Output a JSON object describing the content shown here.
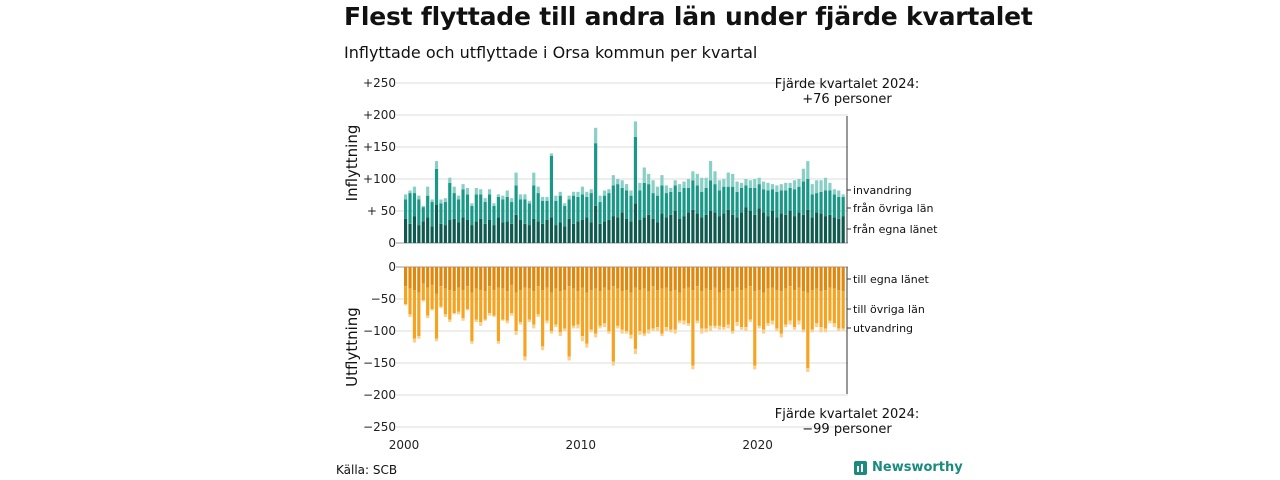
{
  "title": "Flest flyttade till andra län under fjärde kvartalet",
  "subtitle": "Inflyttade och utflyttade i Orsa kommun per kvartal",
  "source": "Källa: SCB",
  "brand": "Newsworthy",
  "colors": {
    "invandring": "#88cfc5",
    "fran_ovriga_lan": "#199888",
    "fran_egna_lanet": "#0e5a4e",
    "till_egna_lanet": "#e0880e",
    "till_ovriga_lan": "#f6a321",
    "utvandring": "#fbd08a"
  },
  "chart_data": [
    {
      "type": "bar",
      "stacked": true,
      "ylabel": "Inflyttning",
      "ylim": [
        0,
        250
      ],
      "y_ticks": [
        "0",
        "+ 50",
        "+100",
        "+150",
        "+200",
        "+250"
      ],
      "x_ticks": [
        "2000",
        "2010",
        "2020"
      ],
      "annotation": [
        "Fjärde kvartalet 2024:",
        "+76 personer"
      ],
      "series_labels": [
        "invandring",
        "från övriga län",
        "från egna länet"
      ],
      "x": [
        "2000Q1",
        "2000Q2",
        "2000Q3",
        "2000Q4",
        "2001Q1",
        "2001Q2",
        "2001Q3",
        "2001Q4",
        "2002Q1",
        "2002Q2",
        "2002Q3",
        "2002Q4",
        "2003Q1",
        "2003Q2",
        "2003Q3",
        "2003Q4",
        "2004Q1",
        "2004Q2",
        "2004Q3",
        "2004Q4",
        "2005Q1",
        "2005Q2",
        "2005Q3",
        "2005Q4",
        "2006Q1",
        "2006Q2",
        "2006Q3",
        "2006Q4",
        "2007Q1",
        "2007Q2",
        "2007Q3",
        "2007Q4",
        "2008Q1",
        "2008Q2",
        "2008Q3",
        "2008Q4",
        "2009Q1",
        "2009Q2",
        "2009Q3",
        "2009Q4",
        "2010Q1",
        "2010Q2",
        "2010Q3",
        "2010Q4",
        "2011Q1",
        "2011Q2",
        "2011Q3",
        "2011Q4",
        "2012Q1",
        "2012Q2",
        "2012Q3",
        "2012Q4",
        "2013Q1",
        "2013Q2",
        "2013Q3",
        "2013Q4",
        "2014Q1",
        "2014Q2",
        "2014Q3",
        "2014Q4",
        "2015Q1",
        "2015Q2",
        "2015Q3",
        "2015Q4",
        "2016Q1",
        "2016Q2",
        "2016Q3",
        "2016Q4",
        "2017Q1",
        "2017Q2",
        "2017Q3",
        "2017Q4",
        "2018Q1",
        "2018Q2",
        "2018Q3",
        "2018Q4",
        "2019Q1",
        "2019Q2",
        "2019Q3",
        "2019Q4",
        "2020Q1",
        "2020Q2",
        "2020Q3",
        "2020Q4",
        "2021Q1",
        "2021Q2",
        "2021Q3",
        "2021Q4",
        "2022Q1",
        "2022Q2",
        "2022Q3",
        "2022Q4",
        "2023Q1",
        "2023Q2",
        "2023Q3",
        "2023Q4",
        "2024Q1",
        "2024Q2",
        "2024Q3",
        "2024Q4"
      ],
      "series": [
        {
          "name": "från egna länet",
          "values": [
            38,
            30,
            42,
            28,
            34,
            40,
            26,
            60,
            30,
            28,
            36,
            38,
            32,
            40,
            36,
            28,
            34,
            38,
            30,
            36,
            28,
            40,
            32,
            34,
            30,
            44,
            36,
            30,
            28,
            38,
            34,
            30,
            36,
            40,
            28,
            32,
            26,
            38,
            30,
            34,
            36,
            40,
            32,
            58,
            30,
            34,
            36,
            42,
            40,
            48,
            38,
            34,
            62,
            36,
            40,
            44,
            38,
            32,
            46,
            40,
            44,
            50,
            38,
            42,
            48,
            52,
            46,
            40,
            44,
            50,
            48,
            42,
            46,
            52,
            44,
            40,
            48,
            56,
            50,
            44,
            54,
            48,
            42,
            50,
            40,
            46,
            44,
            50,
            42,
            48,
            44,
            52,
            40,
            48,
            46,
            42,
            44,
            40,
            38,
            42
          ]
        },
        {
          "name": "från övriga län",
          "values": [
            30,
            48,
            36,
            40,
            22,
            34,
            38,
            56,
            32,
            36,
            58,
            40,
            36,
            44,
            40,
            30,
            42,
            38,
            34,
            40,
            30,
            32,
            36,
            38,
            34,
            46,
            32,
            38,
            34,
            52,
            44,
            36,
            30,
            96,
            38,
            42,
            32,
            30,
            44,
            38,
            40,
            32,
            46,
            98,
            34,
            40,
            42,
            48,
            52,
            38,
            44,
            40,
            104,
            46,
            54,
            48,
            40,
            42,
            44,
            38,
            36,
            40,
            42,
            44,
            38,
            46,
            44,
            40,
            42,
            48,
            44,
            40,
            42,
            36,
            44,
            40,
            38,
            34,
            36,
            42,
            38,
            36,
            40,
            34,
            40,
            36,
            38,
            36,
            42,
            40,
            52,
            48,
            36,
            30,
            34,
            40,
            38,
            36,
            34,
            30
          ]
        },
        {
          "name": "invandring",
          "values": [
            8,
            4,
            10,
            6,
            2,
            14,
            4,
            12,
            6,
            6,
            8,
            10,
            6,
            8,
            10,
            4,
            10,
            8,
            6,
            8,
            4,
            4,
            6,
            10,
            6,
            20,
            8,
            8,
            4,
            20,
            10,
            6,
            6,
            4,
            8,
            6,
            4,
            6,
            6,
            8,
            12,
            8,
            6,
            24,
            10,
            8,
            6,
            16,
            8,
            12,
            10,
            8,
            24,
            12,
            24,
            16,
            20,
            14,
            16,
            12,
            6,
            8,
            12,
            10,
            14,
            14,
            18,
            22,
            16,
            30,
            20,
            16,
            12,
            22,
            20,
            16,
            8,
            10,
            12,
            14,
            10,
            12,
            12,
            8,
            10,
            10,
            12,
            8,
            14,
            12,
            20,
            28,
            16,
            20,
            18,
            20,
            12,
            8,
            10,
            4
          ]
        }
      ]
    },
    {
      "type": "bar",
      "stacked": true,
      "ylabel": "Utflyttning",
      "ylim": [
        -250,
        0
      ],
      "y_ticks": [
        "0",
        "−50",
        "−100",
        "−150",
        "−200",
        "−250"
      ],
      "x_ticks": [
        "2000",
        "2010",
        "2020"
      ],
      "annotation": [
        "Fjärde kvartalet 2024:",
        "−99 personer"
      ],
      "series_labels": [
        "till egna länet",
        "till övriga län",
        "utvandring"
      ],
      "series": [
        {
          "name": "till egna länet",
          "values": [
            -30,
            -34,
            -36,
            -40,
            -26,
            -32,
            -28,
            -42,
            -30,
            -34,
            -36,
            -38,
            -32,
            -36,
            -30,
            -40,
            -34,
            -36,
            -38,
            -30,
            -36,
            -32,
            -34,
            -38,
            -28,
            -40,
            -36,
            -32,
            -34,
            -38,
            -30,
            -36,
            -32,
            -40,
            -34,
            -38,
            -36,
            -30,
            -34,
            -38,
            -32,
            -40,
            -36,
            -34,
            -38,
            -32,
            -36,
            -30,
            -34,
            -38,
            -36,
            -40,
            -32,
            -36,
            -34,
            -38,
            -30,
            -36,
            -34,
            -32,
            -38,
            -36,
            -40,
            -34,
            -32,
            -36,
            -30,
            -38,
            -34,
            -36,
            -32,
            -40,
            -36,
            -34,
            -38,
            -32,
            -36,
            -34,
            -30,
            -38,
            -36,
            -40,
            -34,
            -32,
            -36,
            -38,
            -34,
            -30,
            -36,
            -32,
            -38,
            -40,
            -36,
            -34,
            -38,
            -36,
            -32,
            -34,
            -36,
            -38
          ]
        },
        {
          "name": "till övriga län",
          "values": [
            -28,
            -40,
            -76,
            -68,
            -26,
            -44,
            -38,
            -70,
            -32,
            -40,
            -46,
            -34,
            -38,
            -44,
            -36,
            -76,
            -48,
            -50,
            -44,
            -42,
            -40,
            -84,
            -48,
            -46,
            -44,
            -60,
            -50,
            -108,
            -48,
            -52,
            -44,
            -88,
            -52,
            -60,
            -56,
            -64,
            -60,
            -110,
            -58,
            -52,
            -76,
            -80,
            -62,
            -70,
            -54,
            -56,
            -64,
            -118,
            -58,
            -60,
            -64,
            -66,
            -96,
            -64,
            -70,
            -60,
            -66,
            -58,
            -70,
            -62,
            -60,
            -62,
            -44,
            -50,
            -56,
            -118,
            -54,
            -58,
            -62,
            -56,
            -60,
            -52,
            -58,
            -56,
            -62,
            -54,
            -58,
            -60,
            -52,
            -116,
            -56,
            -58,
            -54,
            -52,
            -60,
            -66,
            -56,
            -54,
            -58,
            -52,
            -60,
            -118,
            -62,
            -54,
            -56,
            -60,
            -52,
            -54,
            -60,
            -58
          ]
        },
        {
          "name": "utvandring",
          "values": [
            -2,
            -4,
            -6,
            -4,
            -2,
            -4,
            -2,
            -4,
            -2,
            -4,
            -4,
            -2,
            -4,
            -4,
            -2,
            -4,
            -4,
            -6,
            -2,
            -4,
            -2,
            -4,
            -2,
            -4,
            -4,
            -6,
            -4,
            -6,
            -4,
            -6,
            -4,
            -6,
            -4,
            -4,
            -4,
            -6,
            -4,
            -6,
            -4,
            -6,
            -8,
            -6,
            -4,
            -6,
            -4,
            -6,
            -4,
            -6,
            -4,
            -6,
            -4,
            -6,
            -8,
            -6,
            -4,
            -6,
            -4,
            -6,
            -4,
            -6,
            -4,
            -6,
            -4,
            -6,
            -4,
            -6,
            -4,
            -8,
            -6,
            -8,
            -4,
            -6,
            -4,
            -6,
            -4,
            -6,
            -4,
            -6,
            -4,
            -6,
            -4,
            -6,
            -4,
            -6,
            -4,
            -6,
            -4,
            -6,
            -4,
            -6,
            -4,
            -6,
            -4,
            -6,
            -8,
            -6,
            -4,
            -6,
            -4,
            -3
          ]
        }
      ]
    }
  ]
}
